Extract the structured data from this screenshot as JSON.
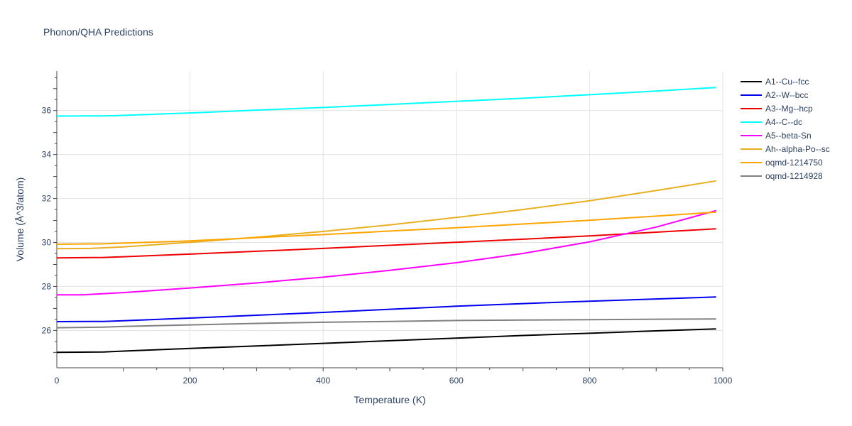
{
  "chart_data": {
    "type": "line",
    "title": "Phonon/QHA Predictions",
    "xlabel": "Temperature (K)",
    "ylabel": "Volume (Å^3/atom)",
    "xlim": [
      0,
      1000
    ],
    "ylim": [
      24.3,
      37.8
    ],
    "xticks": [
      0,
      200,
      400,
      600,
      800,
      1000
    ],
    "yticks": [
      26,
      28,
      30,
      32,
      34,
      36
    ],
    "grid": true,
    "legend": "right",
    "series": [
      {
        "name": "A1--Cu--fcc",
        "color": "#000000",
        "x": [
          0,
          70,
          100,
          200,
          300,
          400,
          500,
          600,
          700,
          800,
          900,
          990
        ],
        "y": [
          25.0,
          25.02,
          25.06,
          25.18,
          25.29,
          25.41,
          25.53,
          25.65,
          25.77,
          25.87,
          25.98,
          26.07
        ]
      },
      {
        "name": "A2--W--bcc",
        "color": "#0000ee",
        "x": [
          0,
          70,
          100,
          200,
          300,
          400,
          500,
          600,
          700,
          800,
          900,
          990
        ],
        "y": [
          26.4,
          26.41,
          26.44,
          26.56,
          26.69,
          26.82,
          26.96,
          27.1,
          27.22,
          27.33,
          27.43,
          27.52
        ]
      },
      {
        "name": "A3--Mg--hcp",
        "color": "#ee0000",
        "x": [
          0,
          70,
          100,
          200,
          300,
          400,
          500,
          600,
          700,
          800,
          900,
          990
        ],
        "y": [
          29.3,
          29.32,
          29.35,
          29.47,
          29.6,
          29.73,
          29.87,
          30.01,
          30.15,
          30.3,
          30.47,
          30.62
        ]
      },
      {
        "name": "A4--C--dc",
        "color": "#00ffff",
        "x": [
          0,
          70,
          100,
          200,
          300,
          400,
          500,
          600,
          700,
          800,
          900,
          990
        ],
        "y": [
          35.75,
          35.76,
          35.78,
          35.89,
          36.02,
          36.14,
          36.28,
          36.42,
          36.56,
          36.72,
          36.89,
          37.05
        ]
      },
      {
        "name": "A5--beta-Sn",
        "color": "#ff00ff",
        "x": [
          0,
          40,
          100,
          200,
          300,
          400,
          500,
          600,
          700,
          800,
          900,
          990
        ],
        "y": [
          27.62,
          27.62,
          27.72,
          27.93,
          28.16,
          28.42,
          28.73,
          29.08,
          29.5,
          30.03,
          30.7,
          31.45
        ]
      },
      {
        "name": "Ah--alpha-Po--sc",
        "color": "#e8b020",
        "x": [
          0,
          50,
          100,
          200,
          300,
          400,
          500,
          600,
          700,
          800,
          900,
          990
        ],
        "y": [
          29.72,
          29.73,
          29.8,
          30.01,
          30.24,
          30.5,
          30.8,
          31.14,
          31.5,
          31.9,
          32.36,
          32.8
        ]
      },
      {
        "name": "oqmd-1214750",
        "color": "#ffa500",
        "x": [
          0,
          70,
          100,
          200,
          300,
          400,
          500,
          600,
          700,
          800,
          900,
          990
        ],
        "y": [
          29.92,
          29.94,
          29.97,
          30.07,
          30.22,
          30.36,
          30.52,
          30.67,
          30.84,
          31.01,
          31.2,
          31.38
        ]
      },
      {
        "name": "oqmd-1214928",
        "color": "#808080",
        "x": [
          0,
          70,
          100,
          200,
          300,
          400,
          500,
          600,
          700,
          800,
          900,
          990
        ],
        "y": [
          26.12,
          26.15,
          26.18,
          26.25,
          26.32,
          26.37,
          26.41,
          26.45,
          26.47,
          26.49,
          26.51,
          26.52
        ]
      }
    ]
  }
}
